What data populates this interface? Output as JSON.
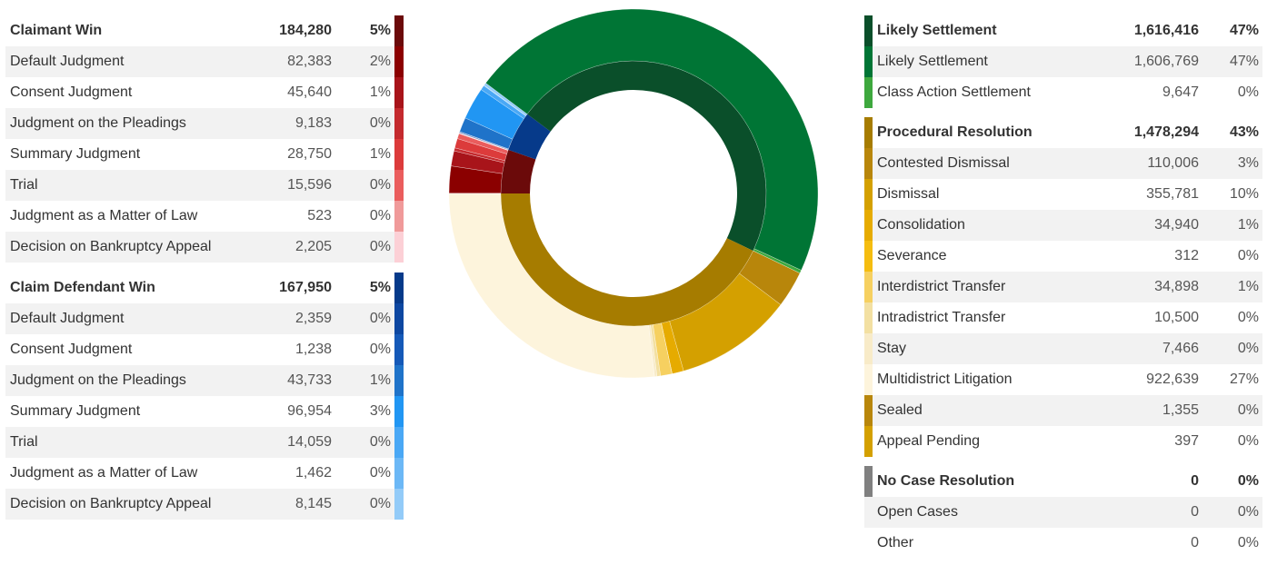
{
  "left_groups": [
    {
      "name": "Claimant Win",
      "count": 184280,
      "count_label": "184,280",
      "pct": "5%",
      "color": "#6b0a0a",
      "rows": [
        {
          "label": "Default Judgment",
          "count": 82383,
          "count_label": "82,383",
          "pct": "2%",
          "color": "#8b0000"
        },
        {
          "label": "Consent Judgment",
          "count": 45640,
          "count_label": "45,640",
          "pct": "1%",
          "color": "#a8141a"
        },
        {
          "label": "Judgment on the Pleadings",
          "count": 9183,
          "count_label": "9,183",
          "pct": "0%",
          "color": "#c42a2e"
        },
        {
          "label": "Summary Judgment",
          "count": 28750,
          "count_label": "28,750",
          "pct": "1%",
          "color": "#dc3b3b"
        },
        {
          "label": "Trial",
          "count": 15596,
          "count_label": "15,596",
          "pct": "0%",
          "color": "#ea5d5d"
        },
        {
          "label": "Judgment as a Matter of Law",
          "count": 523,
          "count_label": "523",
          "pct": "0%",
          "color": "#f09a9a"
        },
        {
          "label": "Decision on Bankruptcy Appeal",
          "count": 2205,
          "count_label": "2,205",
          "pct": "0%",
          "color": "#fcd0d6"
        }
      ]
    },
    {
      "name": "Claim Defendant Win",
      "count": 167950,
      "count_label": "167,950",
      "pct": "5%",
      "color": "#063a8a",
      "rows": [
        {
          "label": "Default Judgment",
          "count": 2359,
          "count_label": "2,359",
          "pct": "0%",
          "color": "#0d47a1"
        },
        {
          "label": "Consent Judgment",
          "count": 1238,
          "count_label": "1,238",
          "pct": "0%",
          "color": "#1559b8"
        },
        {
          "label": "Judgment on the Pleadings",
          "count": 43733,
          "count_label": "43,733",
          "pct": "1%",
          "color": "#1f73c9"
        },
        {
          "label": "Summary Judgment",
          "count": 96954,
          "count_label": "96,954",
          "pct": "3%",
          "color": "#2196f3"
        },
        {
          "label": "Trial",
          "count": 14059,
          "count_label": "14,059",
          "pct": "0%",
          "color": "#4aa8f5"
        },
        {
          "label": "Judgment as a Matter of Law",
          "count": 1462,
          "count_label": "1,462",
          "pct": "0%",
          "color": "#6cb8f6"
        },
        {
          "label": "Decision on Bankruptcy Appeal",
          "count": 8145,
          "count_label": "8,145",
          "pct": "0%",
          "color": "#93cbf8"
        }
      ]
    }
  ],
  "right_groups": [
    {
      "name": "Likely Settlement",
      "count": 1616416,
      "count_label": "1,616,416",
      "pct": "47%",
      "color": "#0a4f2a",
      "rows": [
        {
          "label": "Likely Settlement",
          "count": 1606769,
          "count_label": "1,606,769",
          "pct": "47%",
          "color": "#007535"
        },
        {
          "label": "Class Action Settlement",
          "count": 9647,
          "count_label": "9,647",
          "pct": "0%",
          "color": "#3ea83e"
        }
      ]
    },
    {
      "name": "Procedural Resolution",
      "count": 1478294,
      "count_label": "1,478,294",
      "pct": "43%",
      "color": "#a67c00",
      "rows": [
        {
          "label": "Contested Dismissal",
          "count": 110006,
          "count_label": "110,006",
          "pct": "3%",
          "color": "#b8860b"
        },
        {
          "label": "Dismissal",
          "count": 355781,
          "count_label": "355,781",
          "pct": "10%",
          "color": "#d4a000"
        },
        {
          "label": "Consolidation",
          "count": 34940,
          "count_label": "34,940",
          "pct": "1%",
          "color": "#e6ab00"
        },
        {
          "label": "Severance",
          "count": 312,
          "count_label": "312",
          "pct": "0%",
          "color": "#f5bd10"
        },
        {
          "label": "Interdistrict Transfer",
          "count": 34898,
          "count_label": "34,898",
          "pct": "1%",
          "color": "#f6d060"
        },
        {
          "label": "Intradistrict Transfer",
          "count": 10500,
          "count_label": "10,500",
          "pct": "0%",
          "color": "#f3e0a2"
        },
        {
          "label": "Stay",
          "count": 7466,
          "count_label": "7,466",
          "pct": "0%",
          "color": "#f8ebc8"
        },
        {
          "label": "Multidistrict Litigation",
          "count": 922639,
          "count_label": "922,639",
          "pct": "27%",
          "color": "#fdf4dc"
        },
        {
          "label": "Sealed",
          "count": 1355,
          "count_label": "1,355",
          "pct": "0%",
          "color": "#b8860b"
        },
        {
          "label": "Appeal Pending",
          "count": 397,
          "count_label": "397",
          "pct": "0%",
          "color": "#d4a000"
        }
      ]
    },
    {
      "name": "No Case Resolution",
      "count": 0,
      "count_label": "0",
      "pct": "0%",
      "color": "#808080",
      "rows": [
        {
          "label": "Open Cases",
          "count": 0,
          "count_label": "0",
          "pct": "0%"
        },
        {
          "label": "Other",
          "count": 0,
          "count_label": "0",
          "pct": "0%"
        }
      ]
    }
  ]
}
